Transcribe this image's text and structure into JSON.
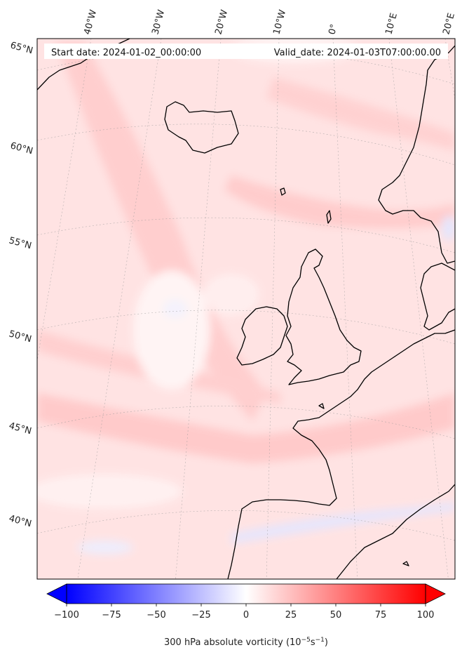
{
  "header": {
    "start_date": "Start date: 2024-01-02_00:00:00",
    "valid_date": "Valid_date: 2024-01-03T07:00:00.00"
  },
  "map": {
    "longitude_labels": [
      "40°W",
      "30°W",
      "20°W",
      "10°W",
      "0°",
      "10°E",
      "20°E"
    ],
    "latitude_labels": [
      "65°N",
      "60°N",
      "55°N",
      "50°N",
      "45°N",
      "40°N"
    ],
    "field": "300 hPa absolute vorticity",
    "background_color": "#ffe4e4",
    "coastline_color": "#000000"
  },
  "colorbar": {
    "ticks": [
      "−100",
      "−75",
      "−50",
      "−25",
      "0",
      "25",
      "50",
      "75",
      "100"
    ],
    "range": [
      -100,
      100
    ],
    "extend": "both",
    "low_color": "#0000ff",
    "mid_color": "#ffffff",
    "high_color": "#ff0000",
    "label": "300 hPa absolute vorticity (10",
    "label_exp1": "−5",
    "label_unit": "s",
    "label_exp2": "−1",
    "label_close": ")"
  }
}
